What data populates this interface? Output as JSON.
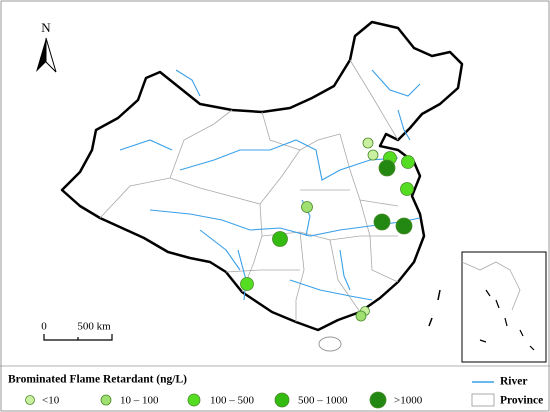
{
  "north": "N",
  "scale_bar": {
    "start": "0",
    "end": "500 km"
  },
  "legend": {
    "title": "Brominated Flame Retardant (ng/L)",
    "classes": [
      "<10",
      "10 – 100",
      "100 – 500",
      "500 – 1000",
      ">1000"
    ],
    "layers": [
      "River",
      "Province"
    ]
  }
}
